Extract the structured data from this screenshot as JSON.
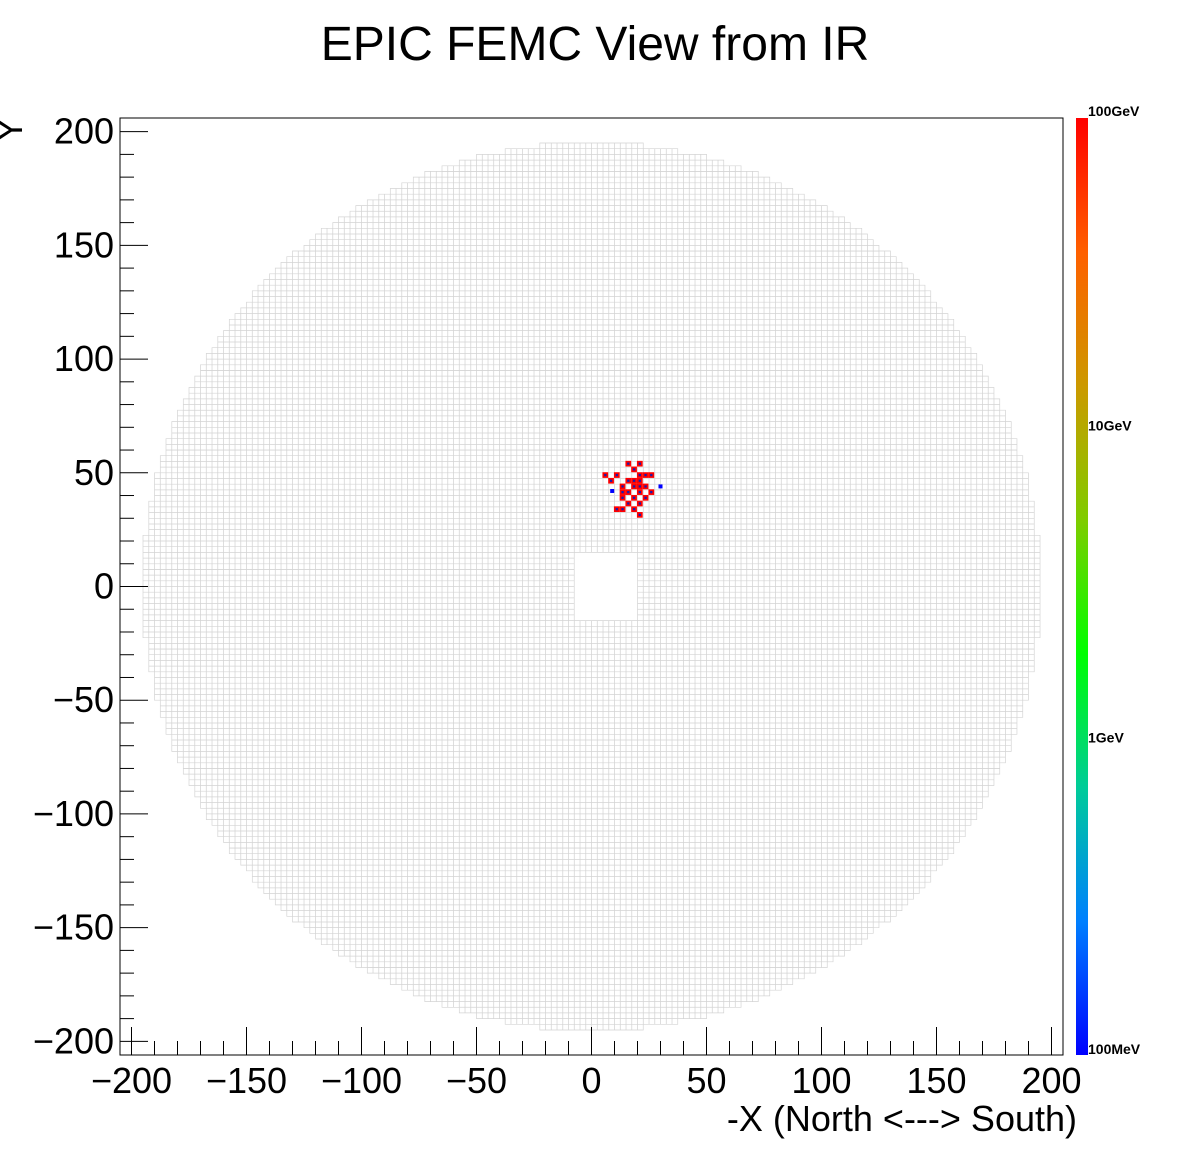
{
  "chart_data": {
    "type": "heatmap",
    "title": "EPIC FEMC View from IR",
    "xlabel": "-X (North <---> South)",
    "ylabel": "Y",
    "xlim": [
      -205,
      205
    ],
    "ylim": [
      -206,
      206
    ],
    "xticks": [
      -200,
      -150,
      -100,
      -50,
      0,
      50,
      100,
      150,
      200
    ],
    "yticks": [
      -200,
      -150,
      -100,
      -50,
      0,
      50,
      100,
      150,
      200
    ],
    "xtick_labels": [
      "−200",
      "−150",
      "−100",
      "−50",
      "0",
      "50",
      "100",
      "150",
      "200"
    ],
    "ytick_labels": [
      "−200",
      "−150",
      "−100",
      "−50",
      "0",
      "50",
      "100",
      "150",
      "200"
    ],
    "detector": {
      "description_of_geometry": "approximately circular grid of calorimeter towers with square beam hole near center",
      "outer_radius": 195,
      "beam_hole": {
        "x": [
          -7,
          21
        ],
        "y": [
          -15,
          15
        ]
      },
      "tower_size": 2.5,
      "cell_color": "#d4d4d4"
    },
    "colorbar": {
      "scale": "log",
      "min_label": "100MeV",
      "labels": [
        "100GeV",
        "10GeV",
        "1GeV",
        "100MeV"
      ],
      "range_GeV": [
        0.1,
        100
      ],
      "colors": [
        "#0000ff",
        "#0080ff",
        "#00cc99",
        "#00ff00",
        "#80cc00",
        "#cc9900",
        "#ff6000",
        "#ff0000"
      ]
    },
    "hits": [
      {
        "x": 6,
        "y": 49,
        "E": 100
      },
      {
        "x": 11,
        "y": 49,
        "E": 100
      },
      {
        "x": 8.5,
        "y": 46.5,
        "E": 100
      },
      {
        "x": 16,
        "y": 54,
        "E": 100
      },
      {
        "x": 21,
        "y": 54,
        "E": 100
      },
      {
        "x": 18.5,
        "y": 51.5,
        "E": 100
      },
      {
        "x": 21,
        "y": 49,
        "E": 100
      },
      {
        "x": 23.5,
        "y": 49,
        "E": 100
      },
      {
        "x": 26,
        "y": 49,
        "E": 100
      },
      {
        "x": 16,
        "y": 46.5,
        "E": 100
      },
      {
        "x": 18.5,
        "y": 46.5,
        "E": 100
      },
      {
        "x": 21,
        "y": 46.5,
        "E": 100
      },
      {
        "x": 13.5,
        "y": 44,
        "E": 100
      },
      {
        "x": 18.5,
        "y": 44,
        "E": 100
      },
      {
        "x": 21,
        "y": 44,
        "E": 100
      },
      {
        "x": 23.5,
        "y": 44,
        "E": 100
      },
      {
        "x": 13.5,
        "y": 41.5,
        "E": 100
      },
      {
        "x": 16,
        "y": 41.5,
        "E": 100
      },
      {
        "x": 21,
        "y": 41.5,
        "E": 100
      },
      {
        "x": 26,
        "y": 41.5,
        "E": 100
      },
      {
        "x": 13.5,
        "y": 39,
        "E": 100
      },
      {
        "x": 18.5,
        "y": 39,
        "E": 100
      },
      {
        "x": 23.5,
        "y": 39,
        "E": 100
      },
      {
        "x": 16,
        "y": 36.5,
        "E": 100
      },
      {
        "x": 21,
        "y": 36.5,
        "E": 100
      },
      {
        "x": 11,
        "y": 34,
        "E": 100
      },
      {
        "x": 13.5,
        "y": 34,
        "E": 100
      },
      {
        "x": 18.5,
        "y": 34,
        "E": 100
      },
      {
        "x": 21,
        "y": 31.5,
        "E": 100
      },
      {
        "x": 9,
        "y": 42,
        "E": 0.1
      },
      {
        "x": 30,
        "y": 44,
        "E": 0.1
      }
    ]
  }
}
